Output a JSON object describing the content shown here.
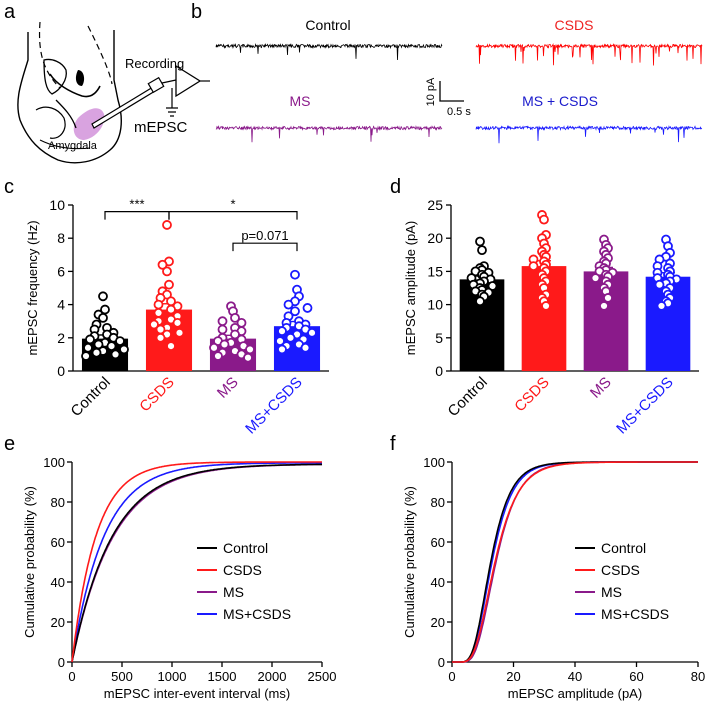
{
  "panel_labels": [
    "a",
    "b",
    "c",
    "d",
    "e",
    "f"
  ],
  "groups": [
    {
      "name": "Control",
      "color": "#000000"
    },
    {
      "name": "CSDS",
      "color": "#ff1a1a"
    },
    {
      "name": "MS",
      "color": "#8a1a8a"
    },
    {
      "name": "MS+CSDS",
      "color": "#1a1aff"
    }
  ],
  "panel_a": {
    "recording_label": "Recording",
    "mepsc_label": "mEPSC",
    "region_label": "Amygdala",
    "region_color": "#d9a3e0"
  },
  "panel_b": {
    "traces": [
      {
        "label": "Control",
        "color": "#000000",
        "label_color": "#000000"
      },
      {
        "label": "CSDS",
        "color": "#ff0000",
        "label_color": "#ee2222"
      },
      {
        "label": "MS",
        "color": "#8a1a8a",
        "label_color": "#8a1a8a"
      },
      {
        "label": "MS + CSDS",
        "color": "#1a1aff",
        "label_color": "#1a1acc"
      }
    ],
    "scale_y_label": "10 pA",
    "scale_x_label": "0.5 s"
  },
  "chart_data": [
    {
      "type": "bar",
      "panel": "c",
      "categories": [
        "Control",
        "CSDS",
        "MS",
        "MS+CSDS"
      ],
      "values": [
        1.95,
        3.7,
        1.95,
        2.7
      ],
      "sem": [
        0.22,
        0.35,
        0.2,
        0.28
      ],
      "points": [
        [
          4.5,
          3.7,
          3.4,
          3.2,
          2.8,
          2.6,
          2.5,
          2.3,
          2.2,
          2.1,
          2.0,
          1.9,
          1.8,
          1.7,
          1.6,
          1.5,
          1.4,
          1.3,
          1.2,
          1.1,
          1.0,
          0.9
        ],
        [
          8.8,
          6.6,
          6.4,
          6.0,
          5.2,
          4.8,
          4.6,
          4.4,
          4.2,
          4.0,
          3.9,
          3.7,
          3.5,
          3.3,
          3.1,
          3.0,
          2.9,
          2.8,
          2.6,
          2.5,
          2.3,
          2.2,
          2.0,
          1.5
        ],
        [
          3.9,
          3.6,
          3.2,
          3.0,
          2.9,
          2.6,
          2.5,
          2.4,
          2.2,
          2.0,
          1.9,
          1.8,
          1.7,
          1.6,
          1.5,
          1.4,
          1.3,
          1.2,
          1.1,
          1.0,
          0.9,
          0.8
        ],
        [
          5.8,
          4.9,
          4.5,
          4.2,
          4.0,
          3.8,
          3.6,
          3.3,
          3.0,
          2.9,
          2.8,
          2.7,
          2.6,
          2.5,
          2.4,
          2.3,
          2.2,
          2.0,
          1.9,
          1.8,
          1.6,
          1.5,
          1.4,
          1.3
        ]
      ],
      "ylabel": "mEPSC frequency (Hz)",
      "ylim": [
        0,
        10
      ],
      "yticks": [
        0,
        2,
        4,
        6,
        8,
        10
      ],
      "significance": [
        {
          "from": 0,
          "to": 1,
          "label": "***",
          "level": 9.6
        },
        {
          "from": 1,
          "to": 3,
          "label": "*",
          "level": 9.6
        },
        {
          "from": 2,
          "to": 3,
          "label": "p=0.071",
          "level": 7.7
        }
      ]
    },
    {
      "type": "bar",
      "panel": "d",
      "categories": [
        "Control",
        "CSDS",
        "MS",
        "MS+CSDS"
      ],
      "values": [
        13.8,
        15.8,
        15.0,
        14.2
      ],
      "sem": [
        0.5,
        0.8,
        0.6,
        0.6
      ],
      "points": [
        [
          19.5,
          18.2,
          15.8,
          15.5,
          15.2,
          15.0,
          14.8,
          14.5,
          14.2,
          14.0,
          13.8,
          13.5,
          13.2,
          13.0,
          12.8,
          12.5,
          12.2,
          12.0,
          11.8,
          11.5,
          11.2,
          10.5
        ],
        [
          23.5,
          22.8,
          20.5,
          20.0,
          19.2,
          18.5,
          18.0,
          17.5,
          17.2,
          16.8,
          16.5,
          16.0,
          15.8,
          15.5,
          15.0,
          14.5,
          14.0,
          13.5,
          13.0,
          12.5,
          11.5,
          11.0,
          10.5,
          9.8
        ],
        [
          19.8,
          19.0,
          18.5,
          18.0,
          17.5,
          17.0,
          16.5,
          16.2,
          15.8,
          15.5,
          15.2,
          15.0,
          14.8,
          14.5,
          14.2,
          14.0,
          13.5,
          13.0,
          12.5,
          12.0,
          11.0,
          9.8
        ],
        [
          19.8,
          18.8,
          17.8,
          17.2,
          16.8,
          16.2,
          15.8,
          15.5,
          15.0,
          14.8,
          14.5,
          14.2,
          14.0,
          13.8,
          13.5,
          13.2,
          13.0,
          12.5,
          12.0,
          11.5,
          11.0,
          10.5,
          10.2,
          9.8
        ]
      ],
      "ylabel": "mEPSC amplitude (pA)",
      "ylim": [
        0,
        25
      ],
      "yticks": [
        0,
        5,
        10,
        15,
        20,
        25
      ]
    },
    {
      "type": "line",
      "panel": "e",
      "xlabel": "mEPSC inter-event interval (ms)",
      "ylabel": "Cumulative probability (%)",
      "xlim": [
        0,
        2500
      ],
      "ylim": [
        0,
        100
      ],
      "xticks": [
        0,
        500,
        1000,
        1500,
        2000,
        2500
      ],
      "yticks": [
        0,
        20,
        40,
        60,
        80,
        100
      ],
      "legend": [
        "Control",
        "CSDS",
        "MS",
        "MS+CSDS"
      ],
      "series": [
        {
          "name": "Control",
          "tau": 400,
          "plateau": 99
        },
        {
          "name": "CSDS",
          "tau": 240,
          "plateau": 100
        },
        {
          "name": "MS",
          "tau": 410,
          "plateau": 99
        },
        {
          "name": "MS+CSDS",
          "tau": 320,
          "plateau": 99.6
        }
      ]
    },
    {
      "type": "line",
      "panel": "f",
      "xlabel": "mEPSC amplitude (pA)",
      "ylabel": "Cumulative probability (%)",
      "xlim": [
        0,
        80
      ],
      "ylim": [
        0,
        100
      ],
      "xticks": [
        0,
        20,
        40,
        60,
        80
      ],
      "yticks": [
        0,
        20,
        40,
        60,
        80,
        100
      ],
      "legend": [
        "Control",
        "CSDS",
        "MS",
        "MS+CSDS"
      ],
      "series": [
        {
          "name": "Control",
          "median": 12.6,
          "sigma": 0.4
        },
        {
          "name": "CSDS",
          "median": 14.0,
          "sigma": 0.42
        },
        {
          "name": "MS",
          "median": 14.3,
          "sigma": 0.4
        },
        {
          "name": "MS+CSDS",
          "median": 13.0,
          "sigma": 0.4
        }
      ]
    }
  ]
}
